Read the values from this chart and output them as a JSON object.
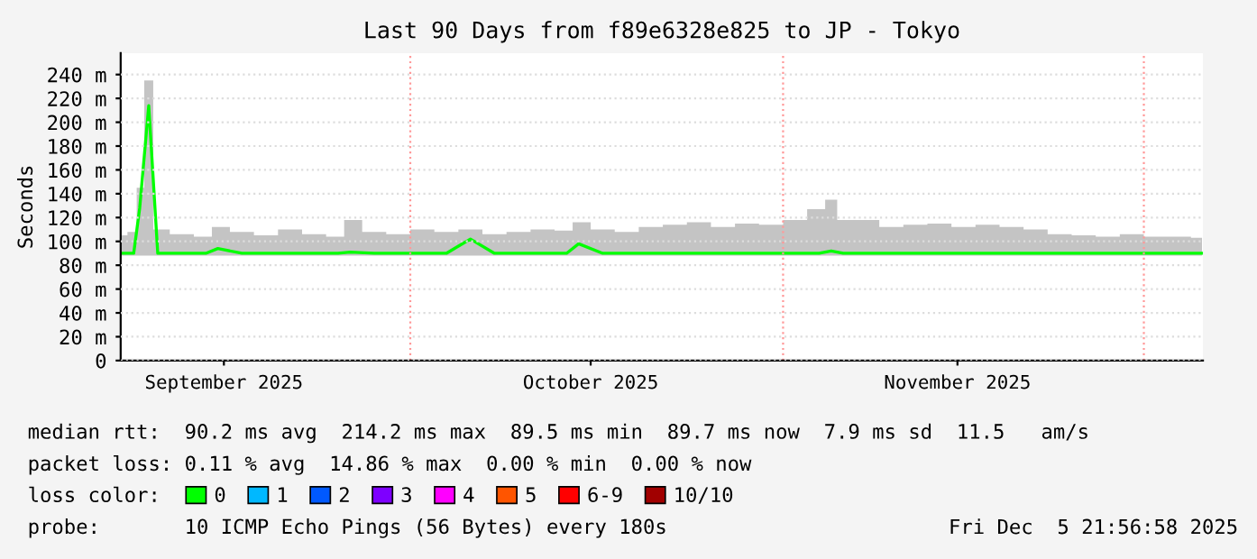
{
  "chart_data": {
    "type": "line",
    "title": "Last 90 Days from f89e6328e825 to JP - Tokyo",
    "ylabel": "Seconds",
    "x": [
      "2025-09-06T23:00",
      "2025-09-08",
      "2025-09-08T12:00",
      "2025-09-09T06:00",
      "2025-09-10",
      "2025-09-12",
      "2025-09-14",
      "2025-09-15",
      "2025-09-17",
      "2025-09-19",
      "2025-09-21",
      "2025-09-23",
      "2025-09-25",
      "2025-09-26",
      "2025-09-28",
      "2025-09-30",
      "2025-10-02",
      "2025-10-04",
      "2025-10-06",
      "2025-10-08",
      "2025-10-10",
      "2025-10-12",
      "2025-10-14",
      "2025-10-15",
      "2025-10-17",
      "2025-10-19",
      "2025-10-21",
      "2025-10-23",
      "2025-10-25",
      "2025-10-27",
      "2025-10-29",
      "2025-10-31",
      "2025-11-02",
      "2025-11-04",
      "2025-11-05",
      "2025-11-06",
      "2025-11-08",
      "2025-11-10",
      "2025-11-12",
      "2025-11-14",
      "2025-11-16",
      "2025-11-18",
      "2025-11-20",
      "2025-11-22",
      "2025-11-24",
      "2025-11-26",
      "2025-11-28",
      "2025-11-30",
      "2025-12-02",
      "2025-12-04",
      "2025-12-05T20:00"
    ],
    "series": [
      {
        "name": "0",
        "color": "#00ff00",
        "values": [
          90,
          90,
          128,
          214,
          90,
          90,
          90,
          94,
          90,
          90,
          90,
          90,
          90,
          91,
          90,
          90,
          90,
          90,
          102,
          90,
          90,
          90,
          90,
          98,
          90,
          90,
          90,
          90,
          90,
          90,
          90,
          90,
          90,
          90,
          92,
          90,
          90,
          90,
          90,
          90,
          90,
          90,
          90,
          90,
          90,
          90,
          90,
          90,
          90,
          90,
          90
        ],
        "lower": [
          88,
          88,
          88,
          88,
          88,
          88,
          88,
          88,
          88,
          88,
          88,
          88,
          88,
          88,
          88,
          88,
          88,
          88,
          88,
          88,
          88,
          88,
          88,
          88,
          88,
          88,
          88,
          88,
          88,
          88,
          88,
          88,
          88,
          88,
          88,
          88,
          88,
          88,
          88,
          88,
          88,
          88,
          88,
          88,
          88,
          88,
          88,
          88,
          88,
          88,
          88
        ],
        "upper": [
          105,
          108,
          145,
          235,
          110,
          106,
          104,
          112,
          108,
          105,
          110,
          106,
          104,
          118,
          108,
          106,
          110,
          108,
          110,
          106,
          108,
          110,
          109,
          116,
          110,
          108,
          112,
          114,
          116,
          112,
          115,
          114,
          118,
          127,
          135,
          118,
          118,
          112,
          114,
          115,
          112,
          114,
          112,
          110,
          106,
          105,
          104,
          106,
          104,
          104,
          103
        ]
      },
      {
        "name": "1",
        "color": "#00b8ff",
        "values": [
          null,
          null,
          null,
          null,
          null,
          null,
          null,
          null,
          null,
          null,
          null,
          null,
          null,
          null,
          null,
          null,
          null,
          null,
          null,
          null,
          null,
          null,
          null,
          null,
          null,
          null,
          null,
          null,
          null,
          null,
          null,
          null,
          null,
          null,
          null,
          null,
          null,
          null,
          null,
          null,
          null,
          null,
          null,
          null,
          null,
          null,
          null,
          null,
          null,
          null,
          null
        ]
      },
      {
        "name": "2",
        "color": "#0059ff",
        "values": [
          null,
          null,
          null,
          null,
          null,
          null,
          null,
          null,
          null,
          null,
          null,
          null,
          null,
          null,
          null,
          null,
          null,
          null,
          null,
          null,
          null,
          null,
          null,
          null,
          null,
          null,
          null,
          null,
          null,
          null,
          null,
          null,
          null,
          null,
          null,
          null,
          null,
          null,
          null,
          null,
          null,
          null,
          null,
          null,
          null,
          null,
          null,
          null,
          null,
          null,
          null
        ]
      },
      {
        "name": "3",
        "color": "#7e00ff",
        "values": [
          null,
          null,
          null,
          null,
          null,
          null,
          null,
          null,
          null,
          null,
          null,
          null,
          null,
          null,
          null,
          null,
          null,
          null,
          null,
          null,
          null,
          null,
          null,
          null,
          null,
          null,
          null,
          null,
          null,
          null,
          null,
          null,
          null,
          null,
          null,
          null,
          null,
          null,
          null,
          null,
          null,
          null,
          null,
          null,
          null,
          null,
          null,
          null,
          null,
          null,
          null
        ]
      },
      {
        "name": "4",
        "color": "#ff00ff",
        "values": [
          null,
          null,
          null,
          null,
          null,
          null,
          null,
          null,
          null,
          null,
          null,
          null,
          null,
          null,
          null,
          null,
          null,
          null,
          null,
          null,
          null,
          null,
          null,
          null,
          null,
          null,
          null,
          null,
          null,
          null,
          null,
          null,
          null,
          null,
          null,
          null,
          null,
          null,
          null,
          null,
          null,
          null,
          null,
          null,
          null,
          null,
          null,
          null,
          null,
          null,
          null
        ]
      },
      {
        "name": "5",
        "color": "#ff5500",
        "values": [
          null,
          null,
          null,
          null,
          null,
          null,
          null,
          null,
          null,
          null,
          null,
          null,
          null,
          null,
          null,
          null,
          null,
          null,
          null,
          null,
          null,
          null,
          null,
          null,
          null,
          null,
          null,
          null,
          null,
          null,
          null,
          null,
          null,
          null,
          null,
          null,
          null,
          null,
          null,
          null,
          null,
          null,
          null,
          null,
          null,
          null,
          null,
          null,
          null,
          null,
          null
        ]
      },
      {
        "name": "6-9",
        "color": "#ff0000",
        "values": [
          null,
          null,
          null,
          null,
          null,
          null,
          null,
          null,
          null,
          null,
          null,
          null,
          null,
          null,
          null,
          null,
          null,
          null,
          null,
          null,
          null,
          null,
          null,
          null,
          null,
          null,
          null,
          null,
          null,
          null,
          null,
          null,
          null,
          null,
          null,
          null,
          null,
          null,
          null,
          null,
          null,
          null,
          null,
          null,
          null,
          null,
          null,
          null,
          null,
          null,
          null
        ]
      },
      {
        "name": "10/10",
        "color": "#a10000",
        "values": [
          null,
          null,
          null,
          null,
          null,
          null,
          null,
          null,
          null,
          null,
          null,
          null,
          null,
          null,
          null,
          null,
          null,
          null,
          null,
          null,
          null,
          null,
          null,
          null,
          null,
          null,
          null,
          null,
          null,
          null,
          null,
          null,
          null,
          null,
          null,
          null,
          null,
          null,
          null,
          null,
          null,
          null,
          null,
          null,
          null,
          null,
          null,
          null,
          null,
          null,
          null
        ]
      }
    ],
    "legend_title": "loss color:",
    "legend": "bottom",
    "xlim": [
      "2025-09-06T22:00",
      "2025-12-05T21:56"
    ],
    "xticks": [
      {
        "value": "2025-09-15T12:00",
        "label": "September 2025"
      },
      {
        "value": "2025-10-16",
        "label": "October 2025"
      },
      {
        "value": "2025-11-15T12:00",
        "label": "November 2025"
      }
    ],
    "ylim": [
      0,
      258
    ],
    "yticks": [
      {
        "value": 0,
        "label": "0"
      },
      {
        "value": 20,
        "label": "20 m"
      },
      {
        "value": 40,
        "label": "40 m"
      },
      {
        "value": 60,
        "label": "60 m"
      },
      {
        "value": 80,
        "label": "80 m"
      },
      {
        "value": 100,
        "label": "100 m"
      },
      {
        "value": 120,
        "label": "120 m"
      },
      {
        "value": 140,
        "label": "140 m"
      },
      {
        "value": 160,
        "label": "160 m"
      },
      {
        "value": 180,
        "label": "180 m"
      },
      {
        "value": 200,
        "label": "200 m"
      },
      {
        "value": 220,
        "label": "220 m"
      },
      {
        "value": 240,
        "label": "240 m"
      }
    ],
    "grid": "y",
    "ref_lines": [
      {
        "axis": "x",
        "value": "2025-10-01",
        "color": "#ff9999",
        "line_style": "dotted"
      },
      {
        "axis": "x",
        "value": "2025-11-01",
        "color": "#ff9999",
        "line_style": "dotted"
      },
      {
        "axis": "x",
        "value": "2025-12-01",
        "color": "#ff9999",
        "line_style": "dotted"
      }
    ],
    "annotations": [
      "median rtt:  90.2 ms avg  214.2 ms max  89.5 ms min  89.7 ms now  7.9 ms sd  11.5   am/s",
      "packet loss: 0.11 % avg  14.86 % max  0.00 % min  0.00 % now",
      "probe:       10 ICMP Echo Pings (56 Bytes) every 180s",
      "Fri Dec  5 21:56:58 2025"
    ]
  }
}
